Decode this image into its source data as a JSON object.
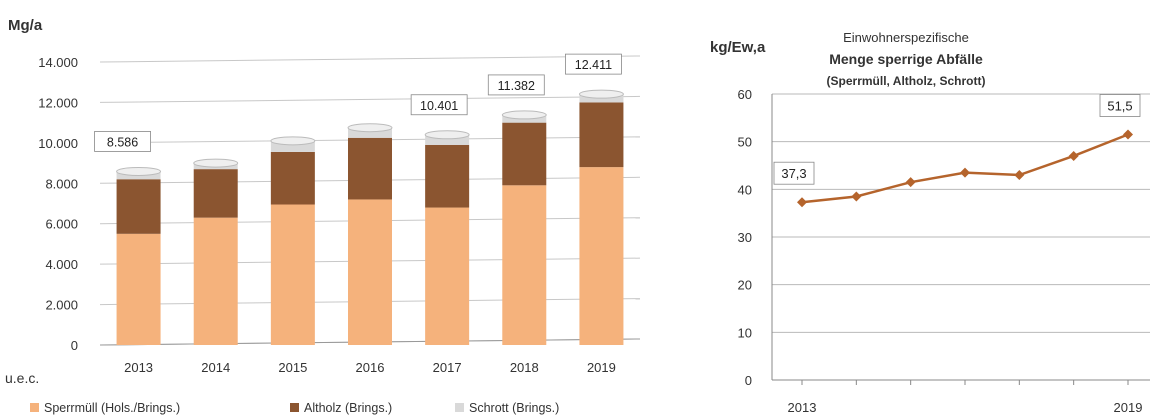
{
  "chart_data": [
    {
      "type": "bar",
      "stacked": true,
      "ylabel": "Mg/a",
      "ylim": [
        0,
        14000
      ],
      "yticks": [
        0,
        2000,
        4000,
        6000,
        8000,
        10000,
        12000,
        14000
      ],
      "ytick_labels": [
        "0",
        "2.000",
        "4.000",
        "6.000",
        "8.000",
        "10.000",
        "12.000",
        "14.000"
      ],
      "categories": [
        "2013",
        "2014",
        "2015",
        "2016",
        "2017",
        "2018",
        "2019"
      ],
      "series": [
        {
          "name": "Sperrmüll (Hols./Brings.)",
          "color": "#f5b27c",
          "values": [
            5500,
            6300,
            6950,
            7200,
            6800,
            7900,
            8800
          ]
        },
        {
          "name": "Altholz (Brings.)",
          "color": "#8b5530",
          "values": [
            2700,
            2400,
            2600,
            3050,
            3100,
            3100,
            3200
          ]
        },
        {
          "name": "Schrott (Brings.)",
          "color": "#d9d9d9",
          "values": [
            386,
            300,
            550,
            500,
            501,
            382,
            411
          ]
        }
      ],
      "total_labels": [
        {
          "category": "2013",
          "text": "8.586"
        },
        {
          "category": "2017",
          "text": "10.401"
        },
        {
          "category": "2018",
          "text": "11.382"
        },
        {
          "category": "2019",
          "text": "12.411"
        }
      ],
      "footnote": "u.e.c.",
      "grid": true,
      "legend_position": "bottom"
    },
    {
      "type": "line",
      "title_lines": [
        "Einwohnerspezifische",
        "Menge sperrige Abfälle",
        "(Sperrmüll, Altholz, Schrott)"
      ],
      "ylabel": "kg/Ew,a",
      "ylim": [
        0,
        60
      ],
      "yticks": [
        0,
        10,
        20,
        30,
        40,
        50,
        60
      ],
      "x": [
        2013,
        2014,
        2015,
        2016,
        2017,
        2018,
        2019
      ],
      "xtick_labels": [
        "2013",
        "",
        "",
        "",
        "",
        "",
        "2019"
      ],
      "series": [
        {
          "color": "#b5642c",
          "values": [
            37.3,
            38.5,
            41.5,
            43.5,
            43,
            47,
            51.5
          ]
        }
      ],
      "point_labels": [
        {
          "index": 0,
          "text": "37,3"
        },
        {
          "index": 6,
          "text": "51,5"
        }
      ],
      "grid": true
    }
  ]
}
